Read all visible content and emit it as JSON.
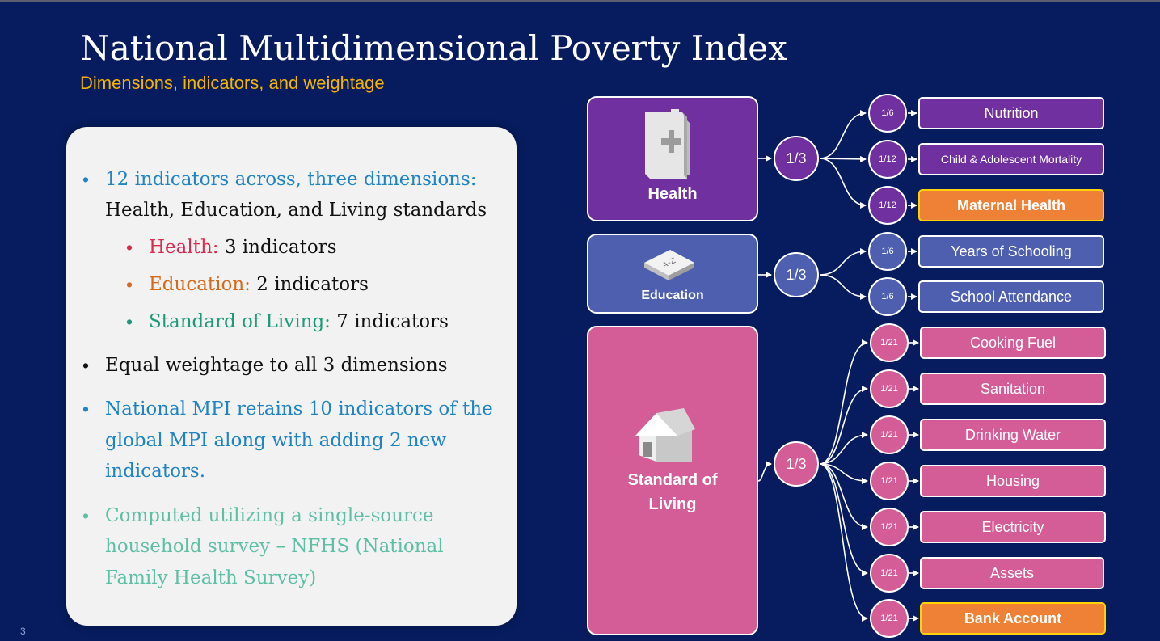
{
  "slide": {
    "title": "National Multidimensional Poverty Index",
    "subtitle": "Dimensions, indicators, and weightage",
    "page_number": "3"
  },
  "textbox": {
    "b1_line1": "12 indicators across, three dimensions:",
    "b1_line2": "Health, Education, and Living standards",
    "sub1_key": "Health:",
    "sub1_val": "3 indicators",
    "sub2_key": "Education:",
    "sub2_val": "2 indicators",
    "sub3_key": "Standard of Living:",
    "sub3_val": "7 indicators",
    "b2": "Equal weightage to all 3 dimensions",
    "b3_line1": "National MPI retains 10 indicators of the",
    "b3_line2": "global MPI along with adding 2 new",
    "b3_line3": "indicators.",
    "b4_line1": "Computed utilizing a single-source",
    "b4_line2": "household survey – NFHS (National",
    "b4_line3": "Family Health Survey)"
  },
  "diagram": {
    "health": {
      "label": "Health",
      "weight": "1/3",
      "icon": "health-folder-icon",
      "color": "#7030a0",
      "indicators": [
        {
          "weight": "1/6",
          "label": "Nutrition"
        },
        {
          "weight": "1/12",
          "label": "Child & Adolescent Mortality"
        },
        {
          "weight": "1/12",
          "label": "Maternal Health"
        }
      ]
    },
    "education": {
      "label": "Education",
      "weight": "1/3",
      "icon": "book-icon",
      "book_text": "A–Z",
      "color": "#4e5fb0",
      "indicators": [
        {
          "weight": "1/6",
          "label": "Years of Schooling"
        },
        {
          "weight": "1/6",
          "label": "School Attendance"
        }
      ]
    },
    "living": {
      "label_line1": "Standard of",
      "label_line2": "Living",
      "weight": "1/3",
      "icon": "house-icon",
      "color": "#d45d97",
      "indicators": [
        {
          "weight": "1/21",
          "label": "Cooking Fuel"
        },
        {
          "weight": "1/21",
          "label": "Sanitation"
        },
        {
          "weight": "1/21",
          "label": "Drinking Water"
        },
        {
          "weight": "1/21",
          "label": "Housing"
        },
        {
          "weight": "1/21",
          "label": "Electricity"
        },
        {
          "weight": "1/21",
          "label": "Assets"
        },
        {
          "weight": "1/21",
          "label": "Bank Account"
        }
      ]
    },
    "highlight_color": "#ee8135"
  }
}
